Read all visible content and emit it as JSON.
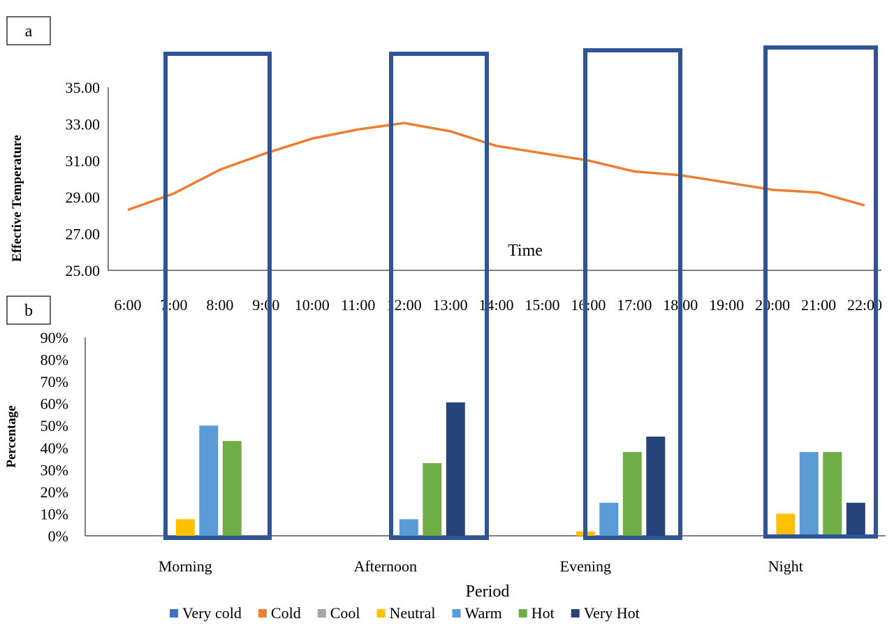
{
  "panels": {
    "a_label": "a",
    "b_label": "b"
  },
  "chart_data": [
    {
      "type": "line",
      "panel": "a",
      "title": "",
      "xlabel": "Time",
      "ylabel": "Effective Temperature",
      "ylim": [
        25,
        35
      ],
      "yticks": [
        "25.00",
        "27.00",
        "29.00",
        "31.00",
        "33.00",
        "35.00"
      ],
      "categories": [
        "6:00",
        "7:00",
        "8:00",
        "9:00",
        "10:00",
        "11:00",
        "12:00",
        "13:00",
        "14:00",
        "15:00",
        "16:00",
        "17:00",
        "18:00",
        "19:00",
        "20:00",
        "21:00",
        "22:00"
      ],
      "series": [
        {
          "name": "",
          "color": "#ED7D31",
          "values": [
            28.3,
            29.2,
            30.5,
            31.4,
            32.2,
            32.7,
            33.05,
            32.6,
            31.8,
            31.4,
            31.0,
            30.4,
            30.2,
            29.8,
            29.4,
            29.25,
            28.55
          ]
        }
      ],
      "grid": false,
      "highlight_color": "#2F5597"
    },
    {
      "type": "bar",
      "panel": "b",
      "title": "",
      "xlabel": "Period",
      "ylabel": "Percentage",
      "ylim": [
        0,
        90
      ],
      "yticks": [
        "0%",
        "10%",
        "20%",
        "30%",
        "40%",
        "50%",
        "60%",
        "70%",
        "80%",
        "90%"
      ],
      "categories": [
        "Morning",
        "Afternoon",
        "Evening",
        "Night"
      ],
      "series": [
        {
          "name": "Very cold",
          "color": "#4472C4",
          "values": [
            0,
            0,
            0,
            0
          ]
        },
        {
          "name": "Cold",
          "color": "#ED7D31",
          "values": [
            0,
            0,
            0,
            0
          ]
        },
        {
          "name": "Cool",
          "color": "#A5A5A5",
          "values": [
            0,
            0,
            0,
            0
          ]
        },
        {
          "name": "Neutral",
          "color": "#FFC000",
          "values": [
            7.5,
            0,
            2,
            10
          ]
        },
        {
          "name": "Warm",
          "color": "#5B9BD5",
          "values": [
            50,
            7.5,
            15,
            38
          ]
        },
        {
          "name": "Hot",
          "color": "#70AD47",
          "values": [
            43,
            33,
            38,
            38
          ]
        },
        {
          "name": "Very Hot",
          "color": "#264478",
          "values": [
            0,
            60.5,
            45,
            15
          ]
        }
      ],
      "legend_position": "bottom",
      "grid": false,
      "highlight_color": "#2F5597"
    }
  ]
}
